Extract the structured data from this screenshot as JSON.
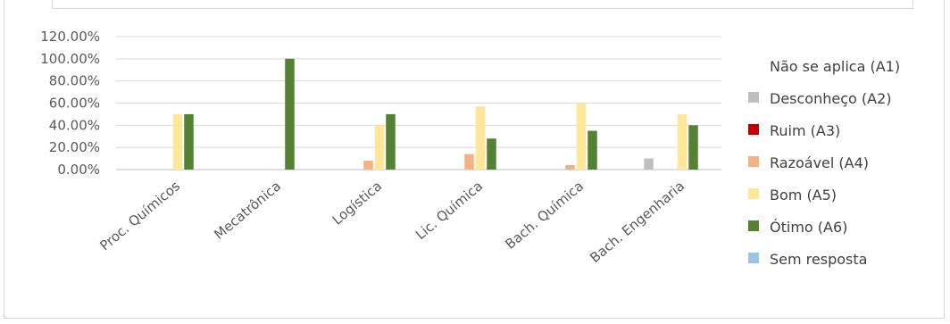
{
  "chart_data": {
    "type": "bar",
    "categories": [
      "Proc. Químicos",
      "Mecatrônica",
      "Logística",
      "Lic. Química",
      "Bach. Química",
      "Bach. Engenharia"
    ],
    "series": [
      {
        "name": "Não se aplica (A1)",
        "color": "#4472c4",
        "values": [
          0,
          0,
          0,
          0,
          0,
          0
        ]
      },
      {
        "name": "Desconheço (A2)",
        "color": "#bfbfbf",
        "values": [
          0,
          0,
          0,
          0,
          0,
          10
        ]
      },
      {
        "name": "Ruim (A3)",
        "color": "#c00000",
        "values": [
          0,
          0,
          0,
          0,
          0,
          0
        ]
      },
      {
        "name": "Razoável (A4)",
        "color": "#f4b183",
        "values": [
          0,
          0,
          8,
          14,
          4,
          0
        ]
      },
      {
        "name": "Bom (A5)",
        "color": "#ffe699",
        "values": [
          50,
          0,
          40,
          57,
          60,
          50
        ]
      },
      {
        "name": "Ótimo (A6)",
        "color": "#548235",
        "values": [
          50,
          100,
          50,
          28,
          35,
          40
        ]
      },
      {
        "name": "Sem resposta",
        "color": "#9dc3e6",
        "values": [
          0,
          0,
          0,
          0,
          0,
          0
        ]
      }
    ],
    "yticks": [
      "0.00%",
      "20.00%",
      "40.00%",
      "60.00%",
      "80.00%",
      "100.00%",
      "120.00%"
    ],
    "ylim": [
      0,
      120
    ],
    "grid": true,
    "legend_position": "right"
  }
}
